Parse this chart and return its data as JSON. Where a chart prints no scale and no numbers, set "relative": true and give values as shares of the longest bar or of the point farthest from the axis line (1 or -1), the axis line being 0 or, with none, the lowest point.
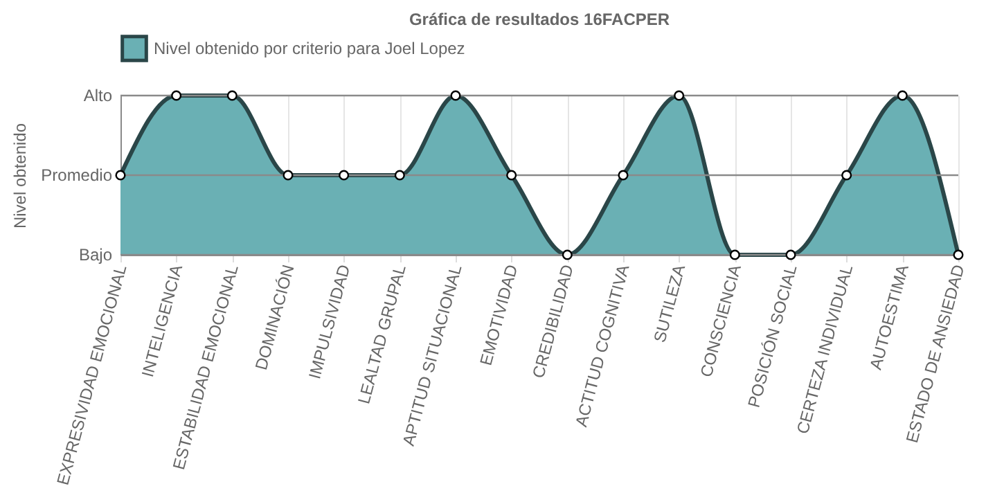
{
  "chart_data": {
    "type": "area",
    "title": "Gráfica de resultados 16FACPER",
    "ylabel": "Nivel obtenido",
    "categories": [
      "EXPRESIVIDAD EMOCIONAL",
      "INTELIGENCIA",
      "ESTABILIDAD EMOCIONAL",
      "DOMINACIÓN",
      "IMPULSIVIDAD",
      "LEALTAD GRUPAL",
      "APTITUD SITUACIONAL",
      "EMOTIVIDAD",
      "CREDIBILIDAD",
      "ACTITUD COGNITIVA",
      "SUTILEZA",
      "CONSCIENCIA",
      "POSICIÓN SOCIAL",
      "CERTEZA INDIVIDUAL",
      "AUTOESTIMA",
      "ESTADO DE ANSIEDAD"
    ],
    "series": [
      {
        "name": "Nivel obtenido por criterio para Joel Lopez",
        "color": "#6ab0b4",
        "values": [
          0.5,
          1,
          1,
          0.5,
          0.5,
          0.5,
          1,
          0.5,
          0,
          0.5,
          1,
          0,
          0,
          0.5,
          1,
          0
        ]
      }
    ],
    "relative": true,
    "ref_lines": [
      {
        "axis": "y",
        "value": 0,
        "label": "Bajo",
        "color": "#8a8a8a"
      },
      {
        "axis": "y",
        "value": 0.5,
        "label": "Promedio",
        "color": "#8a8a8a"
      },
      {
        "axis": "y",
        "value": 1,
        "label": "Alto",
        "color": "#8a8a8a"
      }
    ],
    "grid": "x",
    "legend": "top",
    "marker": "circle",
    "line_style": "solid"
  }
}
